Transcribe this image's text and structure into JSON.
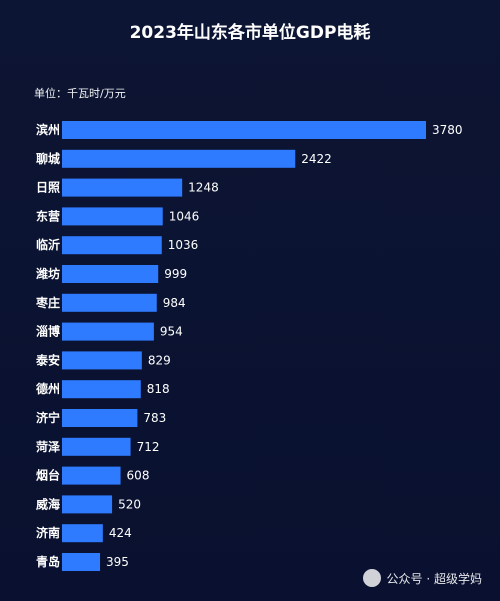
{
  "watermark": "公众号 · 超级学妈",
  "chart_data": {
    "type": "bar",
    "orientation": "horizontal",
    "title": "2023年山东各市单位GDP电耗",
    "unit_label": "单位：千瓦时/万元",
    "categories": [
      "滨州",
      "聊城",
      "日照",
      "东营",
      "临沂",
      "潍坊",
      "枣庄",
      "淄博",
      "泰安",
      "德州",
      "济宁",
      "菏泽",
      "烟台",
      "威海",
      "济南",
      "青岛"
    ],
    "values": [
      3780,
      2422,
      1248,
      1046,
      1036,
      999,
      984,
      954,
      829,
      818,
      783,
      712,
      608,
      520,
      424,
      395
    ],
    "xlim": [
      0,
      3780
    ],
    "bar_color": "#2f7bff",
    "grid": false
  }
}
